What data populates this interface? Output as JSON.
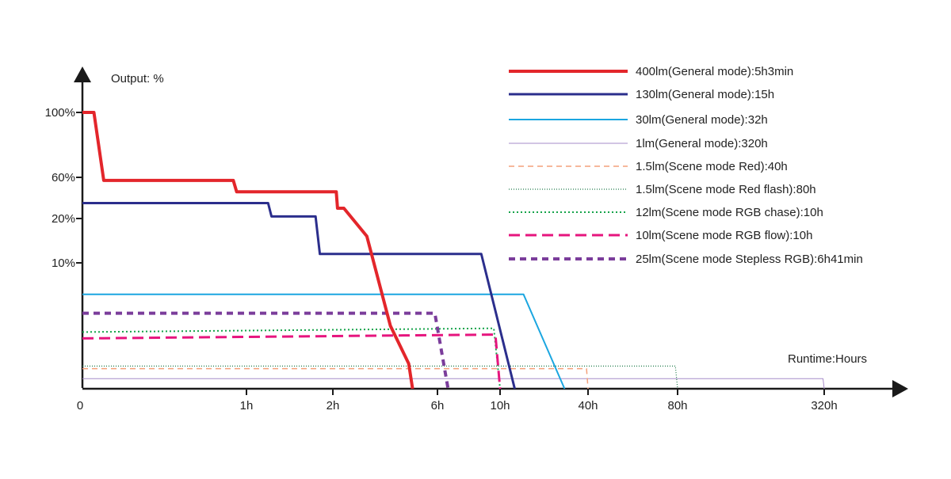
{
  "chart_data": {
    "type": "line",
    "ylabel": "Output: %",
    "xlabel": "Runtime:Hours",
    "x_scale": "nonlinear (0, 1h, 2h, 6h, 10h, 40h, 80h, 320h)",
    "y_scale": "nonlinear (0, 10%, 20%, 60%, 100%)",
    "x_ticks": [
      {
        "label": "0",
        "value": 0
      },
      {
        "label": "1h",
        "value": 1
      },
      {
        "label": "2h",
        "value": 2
      },
      {
        "label": "6h",
        "value": 6
      },
      {
        "label": "10h",
        "value": 10
      },
      {
        "label": "40h",
        "value": 40
      },
      {
        "label": "80h",
        "value": 80
      },
      {
        "label": "320h",
        "value": 320
      }
    ],
    "y_ticks": [
      {
        "label": "10%",
        "value": 10
      },
      {
        "label": "20%",
        "value": 20
      },
      {
        "label": "60%",
        "value": 60
      },
      {
        "label": "100%",
        "value": 100
      }
    ],
    "legend_position": "top-right",
    "series": [
      {
        "name": "400lm(General mode):5h3min",
        "color": "#e3262b",
        "style": "solid",
        "width": 4,
        "points": [
          [
            0,
            100
          ],
          [
            0.07,
            100
          ],
          [
            0.13,
            57
          ],
          [
            0.92,
            57
          ],
          [
            0.94,
            46
          ],
          [
            1.12,
            46
          ],
          [
            2.13,
            46
          ],
          [
            2.18,
            30
          ],
          [
            2.42,
            30
          ],
          [
            3.3,
            16
          ],
          [
            4.2,
            5
          ],
          [
            4.9,
            2
          ],
          [
            5.05,
            0
          ]
        ]
      },
      {
        "name": "130lm(General mode):15h",
        "color": "#2b2e8c",
        "style": "solid",
        "width": 3,
        "points": [
          [
            0,
            35
          ],
          [
            0.62,
            35
          ],
          [
            1.25,
            35
          ],
          [
            1.29,
            22
          ],
          [
            1.35,
            22
          ],
          [
            1.8,
            22
          ],
          [
            1.85,
            12
          ],
          [
            2.5,
            12
          ],
          [
            8.8,
            12
          ],
          [
            15,
            0
          ]
        ]
      },
      {
        "name": "30lm(General mode):32h",
        "color": "#1ba6e0",
        "style": "solid",
        "width": 2,
        "points": [
          [
            0,
            7.5
          ],
          [
            18,
            7.5
          ],
          [
            32,
            0
          ]
        ]
      },
      {
        "name": "1lm(General mode):320h",
        "color": "#a68bc8",
        "style": "solid",
        "width": 1,
        "points": [
          [
            0,
            0.8
          ],
          [
            318,
            0.8
          ],
          [
            320,
            0
          ]
        ]
      },
      {
        "name": "1.5lm(Scene mode Red):40h",
        "color": "#f4a07a",
        "style": "dashed",
        "width": 1.5,
        "points": [
          [
            0,
            1.6
          ],
          [
            39.5,
            1.6
          ],
          [
            40,
            0
          ]
        ]
      },
      {
        "name": "1.5lm(Scene mode Red flash):80h",
        "color": "#1f7a4a",
        "style": "dotted-fine",
        "width": 1.2,
        "points": [
          [
            0,
            1.8
          ],
          [
            79,
            1.8
          ],
          [
            80,
            0
          ]
        ]
      },
      {
        "name": "12lm(Scene mode RGB chase):10h",
        "color": "#15a34a",
        "style": "dotted",
        "width": 2,
        "points": [
          [
            0,
            4.5
          ],
          [
            9.6,
            4.8
          ],
          [
            10,
            0
          ]
        ]
      },
      {
        "name": "10lm(Scene mode RGB flow):10h",
        "color": "#e6157e",
        "style": "dashed-long",
        "width": 3,
        "points": [
          [
            0,
            4
          ],
          [
            9.7,
            4.3
          ],
          [
            10,
            0
          ]
        ]
      },
      {
        "name": "25lm(Scene mode Stepless RGB):6h41min",
        "color": "#7b3d9b",
        "style": "dashed-bold",
        "width": 4,
        "points": [
          [
            0,
            6
          ],
          [
            5.9,
            6
          ],
          [
            6.68,
            0
          ]
        ]
      }
    ]
  }
}
